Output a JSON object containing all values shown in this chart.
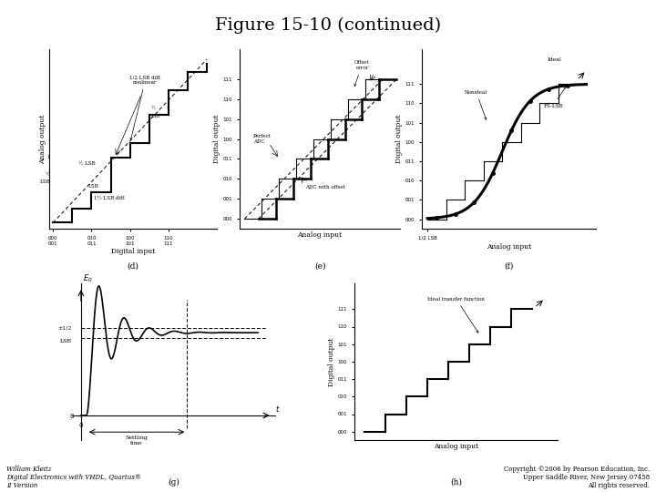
{
  "title": "Figure 15-10 (continued)",
  "title_fontsize": 14,
  "bg_color": "#ffffff",
  "bottom_left_lines": [
    "William Kleitz",
    "Digital Electronics with VHDL, Quartus®",
    "II Version"
  ],
  "bottom_right_lines": [
    "Copyright ©2006 by Pearson Education, Inc.",
    "Upper Saddle River, New Jersey 07458",
    "All rights reserved."
  ],
  "yticks_binary": [
    "000",
    "001",
    "010",
    "011",
    "100",
    "101",
    "110",
    "111"
  ],
  "panel_labels": [
    "(d)",
    "(e)",
    "(f)",
    "(g)",
    "(h)"
  ]
}
